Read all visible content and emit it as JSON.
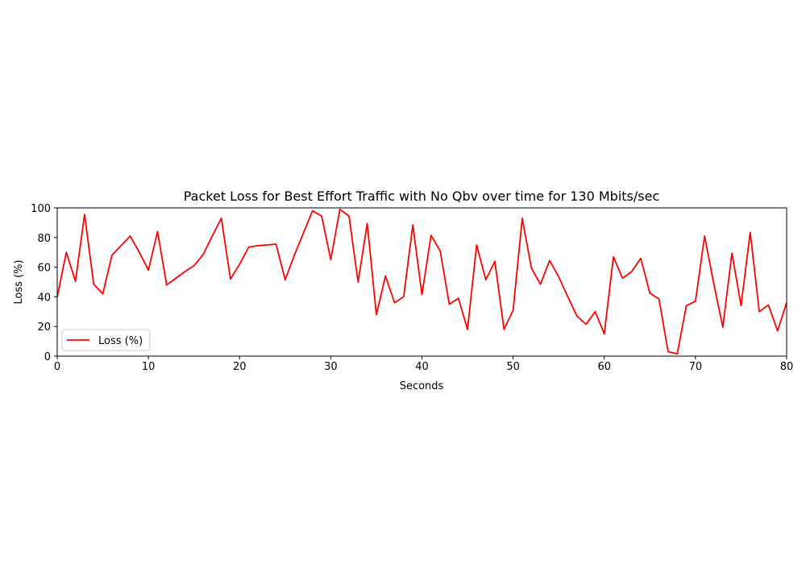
{
  "chart_data": {
    "type": "line",
    "title": "Packet Loss for Best Effort Traffic with No Qbv over time for 130 Mbits/sec",
    "xlabel": "Seconds",
    "ylabel": "Loss (%)",
    "xlim": [
      0,
      80
    ],
    "ylim": [
      0,
      100
    ],
    "xticks": [
      "0",
      "10",
      "20",
      "30",
      "40",
      "50",
      "60",
      "70",
      "80"
    ],
    "yticks": [
      "0",
      "20",
      "40",
      "60",
      "80",
      "100"
    ],
    "grid": false,
    "legend_position": "lower-left",
    "series": [
      {
        "name": "Loss (%)",
        "color": "#ff0000",
        "x": [
          0,
          1,
          2,
          3,
          4,
          5,
          6,
          7,
          8,
          9,
          10,
          11,
          12,
          13,
          14,
          15,
          16,
          17,
          18,
          19,
          20,
          21,
          22,
          23,
          24,
          25,
          26,
          27,
          28,
          29,
          30,
          31,
          32,
          33,
          34,
          35,
          36,
          37,
          38,
          39,
          40,
          41,
          42,
          43,
          44,
          45,
          46,
          47,
          48,
          49,
          50,
          51,
          52,
          53,
          54,
          55,
          56,
          57,
          58,
          59,
          60,
          61,
          62,
          63,
          64,
          65,
          66,
          67,
          68,
          69,
          70,
          71,
          72,
          73,
          74,
          75,
          76,
          77,
          78,
          79,
          80
        ],
        "y": [
          40,
          70,
          50.5,
          95.5,
          48.5,
          42,
          68,
          74.5,
          81,
          70,
          58,
          84,
          48,
          52.5,
          57,
          61,
          68.5,
          81,
          93,
          52,
          62,
          73.5,
          74.5,
          75,
          75.5,
          51.5,
          68,
          83,
          98,
          94.5,
          65,
          99,
          94.5,
          50,
          89.5,
          28,
          54,
          36,
          40,
          88.5,
          41.5,
          81.5,
          71,
          35,
          39,
          18,
          75,
          51.5,
          64,
          18,
          31,
          93,
          59.5,
          48.5,
          64.5,
          53.5,
          40,
          27,
          21.5,
          30,
          15,
          67,
          52.5,
          57,
          66,
          42.5,
          38.5,
          3,
          1.5,
          34,
          37,
          81,
          49,
          19.5,
          69.5,
          34,
          83.5,
          30,
          34.5,
          17,
          36
        ]
      }
    ]
  }
}
